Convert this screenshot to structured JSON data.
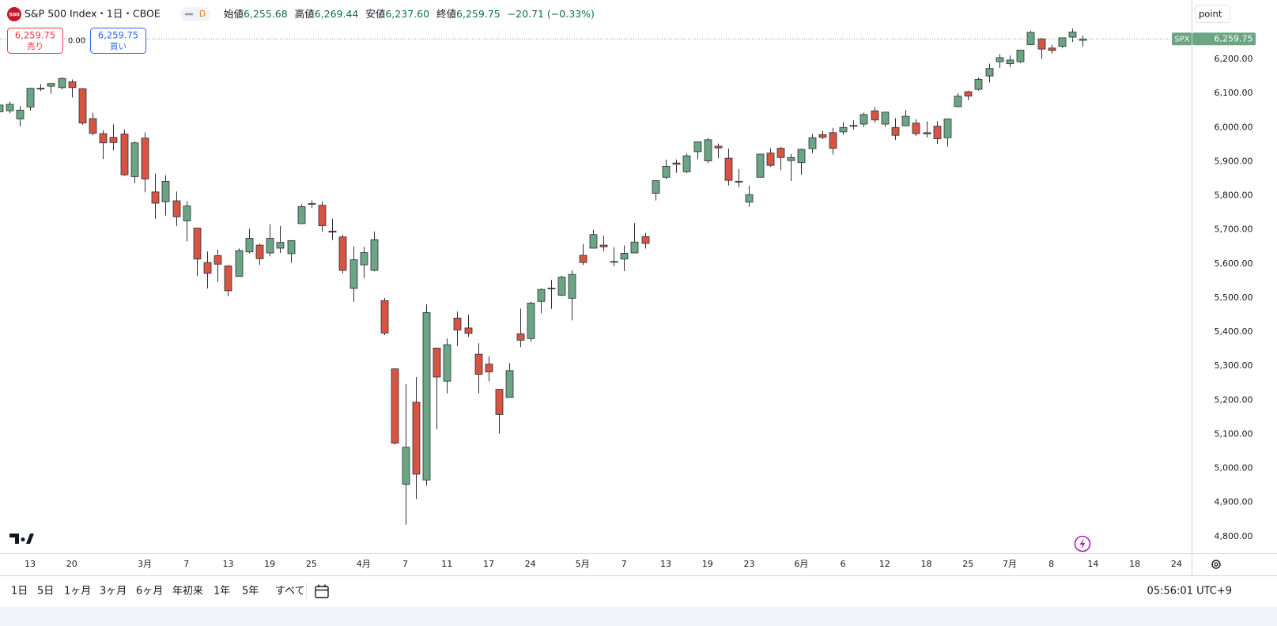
{
  "header": {
    "logo": "500",
    "title": "S&P 500 Index・1日・CBOE",
    "interval_badge": "D",
    "open_label": "始値",
    "open": "6,255.68",
    "high_label": "高値",
    "high": "6,269.44",
    "low_label": "安値",
    "low": "6,237.60",
    "close_label": "終値",
    "close": "6,259.75",
    "change": "−20.71 (−0.33%)"
  },
  "trade": {
    "sell_price": "6,259.75",
    "sell_label": "売り",
    "spread": "0.00",
    "buy_price": "6,259.75",
    "buy_label": "買い"
  },
  "axis_unit": "point",
  "toolbar": {
    "ranges": [
      "1日",
      "5日",
      "1ヶ月",
      "3ヶ月",
      "6ヶ月",
      "年初来",
      "1年",
      "5年",
      "すべて"
    ],
    "clock": "05:56:01 UTC+9"
  },
  "chart_data": {
    "type": "candlestick",
    "symbol": "SPX",
    "up_color": "#6ba583",
    "down_color": "#d75442",
    "last_price": {
      "value": 6259.75,
      "label": "6,259.75"
    },
    "xlim": [
      0,
      114
    ],
    "xticks": [
      {
        "value": 3,
        "label": "13"
      },
      {
        "value": 7,
        "label": "20"
      },
      {
        "value": 14,
        "label": "3月"
      },
      {
        "value": 18,
        "label": "7"
      },
      {
        "value": 22,
        "label": "13"
      },
      {
        "value": 26,
        "label": "19"
      },
      {
        "value": 30,
        "label": "25"
      },
      {
        "value": 35,
        "label": "4月"
      },
      {
        "value": 39,
        "label": "7"
      },
      {
        "value": 43,
        "label": "11"
      },
      {
        "value": 47,
        "label": "17"
      },
      {
        "value": 51,
        "label": "24"
      },
      {
        "value": 56,
        "label": "5月"
      },
      {
        "value": 60,
        "label": "7"
      },
      {
        "value": 64,
        "label": "13"
      },
      {
        "value": 68,
        "label": "19"
      },
      {
        "value": 72,
        "label": "23"
      },
      {
        "value": 77,
        "label": "6月"
      },
      {
        "value": 81,
        "label": "6"
      },
      {
        "value": 85,
        "label": "12"
      },
      {
        "value": 89,
        "label": "18"
      },
      {
        "value": 93,
        "label": "25"
      },
      {
        "value": 97,
        "label": "7月"
      },
      {
        "value": 101,
        "label": "8"
      },
      {
        "value": 105,
        "label": "14"
      },
      {
        "value": 109,
        "label": "18"
      },
      {
        "value": 113,
        "label": "24"
      }
    ],
    "ylim": [
      4751,
      6374
    ],
    "yticks": [
      {
        "value": 4800,
        "label": "4,800.00"
      },
      {
        "value": 4900,
        "label": "4,900.00"
      },
      {
        "value": 5000,
        "label": "5,000.00"
      },
      {
        "value": 5100,
        "label": "5,100.00"
      },
      {
        "value": 5200,
        "label": "5,200.00"
      },
      {
        "value": 5300,
        "label": "5,300.00"
      },
      {
        "value": 5400,
        "label": "5,400.00"
      },
      {
        "value": 5500,
        "label": "5,500.00"
      },
      {
        "value": 5600,
        "label": "5,600.00"
      },
      {
        "value": 5700,
        "label": "5,700.00"
      },
      {
        "value": 5800,
        "label": "5,800.00"
      },
      {
        "value": 5900,
        "label": "5,900.00"
      },
      {
        "value": 6000,
        "label": "6,000.00"
      },
      {
        "value": 6100,
        "label": "6,100.00"
      },
      {
        "value": 6200,
        "label": "6,200.00"
      }
    ],
    "open": [
      6046,
      6049,
      6025,
      6060,
      6115,
      6121,
      6117,
      6134,
      6114,
      6026,
      5982,
      5971,
      5981,
      5856,
      5969,
      5811,
      5782,
      5785,
      5726,
      5705,
      5604,
      5624,
      5594,
      5563,
      5635,
      5655,
      5632,
      5646,
      5630,
      5718,
      5776,
      5772,
      5696,
      5679,
      5528,
      5597,
      5581,
      5492,
      5292,
      4953,
      5194,
      4966,
      5353,
      5256,
      5441,
      5412,
      5335,
      5306,
      5232,
      5208,
      5395,
      5381,
      5490,
      5529,
      5508,
      5499,
      5625,
      5646,
      5655,
      5605,
      5614,
      5632,
      5680,
      5807,
      5854,
      5896,
      5870,
      5929,
      5902,
      5945,
      5910,
      5841,
      5781,
      5854,
      5925,
      5939,
      5903,
      5897,
      5938,
      5979,
      5985,
      5987,
      6004,
      6010,
      6049,
      6010,
      6000,
      6005,
      6013,
      5985,
      6004,
      5970,
      6061,
      6105,
      6112,
      6151,
      6193,
      6187,
      6193,
      6243,
      6260,
      6233,
      6238,
      6265,
      6255.68
    ],
    "high": [
      6073,
      6076,
      6063,
      6116,
      6127,
      6129,
      6147,
      6141,
      6115,
      6043,
      5992,
      6009,
      5994,
      5959,
      5986,
      5865,
      5860,
      5812,
      5783,
      5705,
      5636,
      5642,
      5597,
      5645,
      5703,
      5659,
      5716,
      5711,
      5670,
      5775,
      5786,
      5783,
      5732,
      5685,
      5651,
      5650,
      5695,
      5500,
      5292,
      5247,
      5268,
      5481,
      5353,
      5381,
      5460,
      5450,
      5367,
      5329,
      5232,
      5309,
      5469,
      5489,
      5528,
      5553,
      5565,
      5581,
      5658,
      5700,
      5683,
      5649,
      5654,
      5720,
      5691,
      5845,
      5906,
      5906,
      5924,
      5959,
      5969,
      5953,
      5938,
      5878,
      5829,
      5923,
      5939,
      5943,
      5922,
      5938,
      5981,
      5990,
      5999,
      6016,
      6021,
      6044,
      6060,
      6046,
      6027,
      6051,
      6024,
      6018,
      6018,
      6026,
      6101,
      6108,
      6146,
      6187,
      6215,
      6211,
      6227,
      6284,
      6263,
      6242,
      6264,
      6290,
      6269.44
    ],
    "low": [
      6043,
      6042,
      6003,
      6050,
      6107,
      6099,
      6111,
      6088,
      6008,
      5977,
      5908,
      5933,
      5858,
      5837,
      5810,
      5732,
      5742,
      5711,
      5666,
      5564,
      5528,
      5546,
      5505,
      5563,
      5631,
      5597,
      5622,
      5632,
      5603,
      5718,
      5764,
      5694,
      5670,
      5572,
      5489,
      5558,
      5578,
      5391,
      5070,
      4835,
      4910,
      4950,
      5115,
      5220,
      5359,
      5386,
      5220,
      5255,
      5102,
      5208,
      5356,
      5371,
      5455,
      5468,
      5505,
      5434,
      5597,
      5646,
      5637,
      5593,
      5579,
      5632,
      5645,
      5786,
      5848,
      5867,
      5866,
      5907,
      5896,
      5910,
      5830,
      5825,
      5767,
      5854,
      5885,
      5875,
      5843,
      5861,
      5925,
      5966,
      5921,
      5978,
      5994,
      6001,
      6014,
      6002,
      5964,
      6004,
      5975,
      5971,
      5952,
      5944,
      6060,
      6080,
      6108,
      6132,
      6175,
      6177,
      6189,
      6241,
      6201,
      6217,
      6233,
      6251,
      6237.6
    ],
    "close": [
      6066,
      6068,
      6051,
      6115,
      6114,
      6129,
      6144,
      6117,
      6013,
      5983,
      5955,
      5956,
      5861,
      5955,
      5849,
      5778,
      5842,
      5738,
      5770,
      5614,
      5572,
      5599,
      5521,
      5639,
      5675,
      5615,
      5675,
      5663,
      5668,
      5768,
      5777,
      5712,
      5693,
      5581,
      5612,
      5633,
      5671,
      5397,
      5074,
      5062,
      4983,
      5457,
      5268,
      5363,
      5406,
      5396,
      5276,
      5283,
      5158,
      5287,
      5376,
      5485,
      5525,
      5529,
      5561,
      5569,
      5604,
      5686,
      5650,
      5607,
      5631,
      5664,
      5660,
      5844,
      5886,
      5892,
      5917,
      5958,
      5964,
      5940,
      5845,
      5842,
      5803,
      5922,
      5889,
      5912,
      5912,
      5936,
      5970,
      5971,
      5939,
      6000,
      6006,
      6038,
      6022,
      6045,
      5977,
      6033,
      5982,
      5981,
      5967,
      6025,
      6092,
      6092,
      6141,
      6173,
      6205,
      6198,
      6227,
      6279,
      6230,
      6226,
      6263,
      6280,
      6259.75
    ]
  }
}
